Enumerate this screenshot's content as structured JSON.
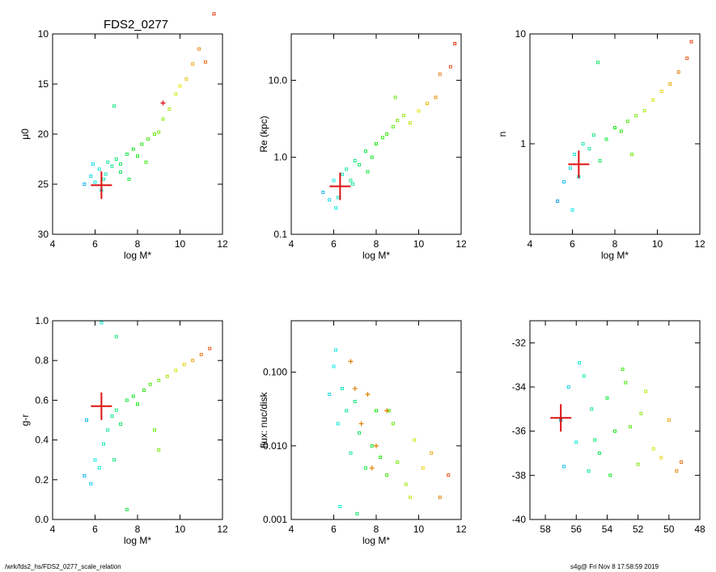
{
  "figure_title": "FDS2_0277",
  "footer": {
    "left": "/wrk/fds2_hs/FDS2_0277_scale_relation",
    "right": "s4g@  Fri Nov  8 17:58:59 2019"
  },
  "chart_data": [
    {
      "type": "scatter",
      "title": "FDS2_0277",
      "xlabel": "log M*",
      "ylabel": "μ0",
      "xlim": [
        4,
        12
      ],
      "ylim": [
        30,
        10
      ],
      "y_inverted": true,
      "xticks": [
        4,
        6,
        8,
        10,
        12
      ],
      "xtick_labels": [
        "4",
        "6",
        "8",
        "10",
        "12"
      ],
      "yticks": [
        10,
        15,
        20,
        25,
        30
      ],
      "ytick_labels": [
        "10",
        "15",
        "20",
        "25",
        "30"
      ],
      "color_by": "g-r",
      "points": [
        [
          5.5,
          25.0
        ],
        [
          5.8,
          24.2
        ],
        [
          6.0,
          24.8
        ],
        [
          6.2,
          23.5
        ],
        [
          6.3,
          25.6
        ],
        [
          6.5,
          24.0
        ],
        [
          6.6,
          22.8
        ],
        [
          6.8,
          23.2
        ],
        [
          7.0,
          22.5
        ],
        [
          7.2,
          23.8
        ],
        [
          7.5,
          22.0
        ],
        [
          7.8,
          21.5
        ],
        [
          8.0,
          22.2
        ],
        [
          8.2,
          21.0
        ],
        [
          8.5,
          20.5
        ],
        [
          8.8,
          20.0
        ],
        [
          9.0,
          19.8
        ],
        [
          9.2,
          18.5
        ],
        [
          9.5,
          17.5
        ],
        [
          9.8,
          16.0
        ],
        [
          10.0,
          15.2
        ],
        [
          10.3,
          14.5
        ],
        [
          10.6,
          13.0
        ],
        [
          10.9,
          11.5
        ],
        [
          11.2,
          12.8
        ],
        [
          11.6,
          8.0
        ],
        [
          6.9,
          17.2
        ],
        [
          7.2,
          23.0
        ],
        [
          6.4,
          24.5
        ],
        [
          5.9,
          23.0
        ],
        [
          7.6,
          24.5
        ],
        [
          8.4,
          22.8
        ]
      ],
      "highlight": {
        "x": 9.2,
        "y": 16.9,
        "label": ""
      },
      "target": {
        "x": 6.3,
        "y": 25.1
      }
    },
    {
      "type": "scatter",
      "xlabel": "log M*",
      "ylabel": "Re (kpc)",
      "yscale": "log",
      "xlim": [
        4,
        12
      ],
      "ylim": [
        0.1,
        40
      ],
      "xticks": [
        4,
        6,
        8,
        10,
        12
      ],
      "xtick_labels": [
        "4",
        "6",
        "8",
        "10",
        "12"
      ],
      "yticks": [
        0.1,
        1.0,
        10.0
      ],
      "ytick_labels": [
        "0.1",
        "1.0",
        "10.0"
      ],
      "color_by": "g-r",
      "points": [
        [
          5.5,
          0.35
        ],
        [
          5.8,
          0.28
        ],
        [
          6.0,
          0.5
        ],
        [
          6.2,
          0.3
        ],
        [
          6.4,
          0.6
        ],
        [
          6.6,
          0.7
        ],
        [
          6.8,
          0.5
        ],
        [
          7.0,
          0.9
        ],
        [
          7.2,
          0.8
        ],
        [
          7.5,
          1.2
        ],
        [
          7.8,
          1.0
        ],
        [
          8.0,
          1.5
        ],
        [
          8.3,
          1.8
        ],
        [
          8.5,
          2.0
        ],
        [
          8.8,
          2.5
        ],
        [
          9.0,
          3.0
        ],
        [
          9.3,
          3.5
        ],
        [
          9.6,
          2.8
        ],
        [
          10.0,
          4.0
        ],
        [
          10.4,
          5.0
        ],
        [
          10.8,
          6.0
        ],
        [
          11.0,
          12.0
        ],
        [
          11.5,
          15.0
        ],
        [
          11.7,
          30.0
        ],
        [
          6.1,
          0.22
        ],
        [
          6.9,
          0.45
        ],
        [
          7.6,
          0.65
        ],
        [
          8.9,
          6.0
        ]
      ],
      "target": {
        "x": 6.3,
        "y": 0.42
      }
    },
    {
      "type": "scatter",
      "xlabel": "log M*",
      "ylabel": "n",
      "yscale": "log",
      "xlim": [
        4,
        12
      ],
      "ylim": [
        0.15,
        10
      ],
      "xticks": [
        4,
        6,
        8,
        10,
        12
      ],
      "xtick_labels": [
        "4",
        "6",
        "8",
        "10",
        "12"
      ],
      "yticks": [
        1,
        10
      ],
      "ytick_labels": [
        "1",
        "10"
      ],
      "color_by": "g-r",
      "points": [
        [
          5.3,
          0.3
        ],
        [
          5.6,
          0.45
        ],
        [
          5.9,
          0.6
        ],
        [
          6.1,
          0.8
        ],
        [
          6.3,
          0.5
        ],
        [
          6.5,
          1.0
        ],
        [
          6.8,
          0.9
        ],
        [
          7.0,
          1.2
        ],
        [
          7.3,
          0.7
        ],
        [
          7.6,
          1.1
        ],
        [
          8.0,
          1.4
        ],
        [
          8.3,
          1.3
        ],
        [
          8.6,
          1.6
        ],
        [
          9.0,
          1.8
        ],
        [
          9.4,
          2.0
        ],
        [
          9.8,
          2.5
        ],
        [
          10.2,
          3.0
        ],
        [
          10.6,
          3.5
        ],
        [
          11.0,
          4.5
        ],
        [
          11.4,
          6.0
        ],
        [
          11.6,
          8.5
        ],
        [
          7.2,
          5.5
        ],
        [
          6.0,
          0.25
        ],
        [
          8.8,
          0.8
        ]
      ],
      "target": {
        "x": 6.3,
        "y": 0.65
      }
    },
    {
      "type": "scatter",
      "xlabel": "log M*",
      "ylabel": "g-r",
      "xlim": [
        4,
        12
      ],
      "ylim": [
        0.0,
        1.0
      ],
      "xticks": [
        4,
        6,
        8,
        10,
        12
      ],
      "xtick_labels": [
        "4",
        "6",
        "8",
        "10",
        "12"
      ],
      "yticks": [
        0.0,
        0.2,
        0.4,
        0.6,
        0.8,
        1.0
      ],
      "ytick_labels": [
        "0.0",
        "0.2",
        "0.4",
        "0.6",
        "0.8",
        "1.0"
      ],
      "color_by": "g-r",
      "points": [
        [
          5.5,
          0.22
        ],
        [
          5.8,
          0.18
        ],
        [
          6.0,
          0.3
        ],
        [
          6.2,
          0.26
        ],
        [
          6.4,
          0.38
        ],
        [
          6.6,
          0.45
        ],
        [
          6.8,
          0.52
        ],
        [
          7.0,
          0.55
        ],
        [
          7.2,
          0.48
        ],
        [
          7.5,
          0.6
        ],
        [
          7.8,
          0.62
        ],
        [
          8.0,
          0.58
        ],
        [
          8.3,
          0.65
        ],
        [
          8.6,
          0.68
        ],
        [
          9.0,
          0.7
        ],
        [
          9.4,
          0.72
        ],
        [
          9.8,
          0.75
        ],
        [
          10.2,
          0.78
        ],
        [
          10.6,
          0.8
        ],
        [
          11.0,
          0.83
        ],
        [
          11.4,
          0.86
        ],
        [
          6.3,
          0.99
        ],
        [
          7.0,
          0.92
        ],
        [
          7.5,
          0.05
        ],
        [
          9.0,
          0.35
        ],
        [
          5.6,
          0.5
        ],
        [
          6.9,
          0.3
        ],
        [
          8.8,
          0.45
        ]
      ],
      "target": {
        "x": 6.3,
        "y": 0.57
      }
    },
    {
      "type": "scatter",
      "xlabel": "log M*",
      "ylabel": "flux: nuc/disk",
      "yscale": "log",
      "xlim": [
        4,
        12
      ],
      "ylim": [
        0.001,
        0.5
      ],
      "xticks": [
        4,
        6,
        8,
        10,
        12
      ],
      "xtick_labels": [
        "4",
        "6",
        "8",
        "10",
        "12"
      ],
      "yticks": [
        0.001,
        0.01,
        0.1
      ],
      "ytick_labels": [
        "0.001",
        "0.010",
        "0.100"
      ],
      "color_by": "g-r",
      "points": [
        [
          5.8,
          0.05
        ],
        [
          6.0,
          0.12
        ],
        [
          6.2,
          0.02
        ],
        [
          6.4,
          0.06
        ],
        [
          6.6,
          0.03
        ],
        [
          6.8,
          0.008
        ],
        [
          7.0,
          0.04
        ],
        [
          7.2,
          0.015
        ],
        [
          7.5,
          0.005
        ],
        [
          7.8,
          0.01
        ],
        [
          8.0,
          0.03
        ],
        [
          8.2,
          0.007
        ],
        [
          8.5,
          0.004
        ],
        [
          8.8,
          0.02
        ],
        [
          9.0,
          0.006
        ],
        [
          9.4,
          0.003
        ],
        [
          9.8,
          0.012
        ],
        [
          10.2,
          0.005
        ],
        [
          10.6,
          0.008
        ],
        [
          11.0,
          0.002
        ],
        [
          11.4,
          0.004
        ],
        [
          6.1,
          0.2
        ],
        [
          6.3,
          0.0015
        ],
        [
          7.1,
          0.0012
        ],
        [
          8.6,
          0.03
        ],
        [
          9.6,
          0.002
        ]
      ],
      "highlight_stars": [
        [
          6.8,
          0.14
        ],
        [
          7.0,
          0.06
        ],
        [
          7.6,
          0.05
        ],
        [
          8.5,
          0.03
        ],
        [
          7.3,
          0.02
        ],
        [
          8.0,
          0.01
        ],
        [
          7.8,
          0.005
        ]
      ]
    },
    {
      "type": "scatter",
      "xlabel": "",
      "ylabel": "",
      "xlim": [
        59,
        48
      ],
      "ylim": [
        -40,
        -31
      ],
      "x_inverted": true,
      "xticks": [
        58,
        56,
        54,
        52,
        50,
        48
      ],
      "xtick_labels": [
        "58",
        "56",
        "54",
        "52",
        "50",
        "48"
      ],
      "yticks": [
        -40,
        -38,
        -36,
        -34,
        -32
      ],
      "ytick_labels": [
        "-40",
        "-38",
        "-36",
        "-34",
        "-32"
      ],
      "color_by": "g-r",
      "points": [
        [
          57.0,
          -35.5
        ],
        [
          56.5,
          -34.0
        ],
        [
          56.0,
          -36.5
        ],
        [
          55.5,
          -33.5
        ],
        [
          55.0,
          -35.0
        ],
        [
          54.5,
          -37.0
        ],
        [
          54.0,
          -34.5
        ],
        [
          53.5,
          -36.0
        ],
        [
          53.0,
          -33.2
        ],
        [
          52.5,
          -35.8
        ],
        [
          52.0,
          -37.5
        ],
        [
          51.5,
          -34.2
        ],
        [
          51.0,
          -36.8
        ],
        [
          50.5,
          -37.2
        ],
        [
          50.0,
          -35.5
        ],
        [
          49.5,
          -37.8
        ],
        [
          49.2,
          -37.4
        ],
        [
          56.8,
          -37.6
        ],
        [
          55.8,
          -32.9
        ],
        [
          53.8,
          -38.0
        ],
        [
          52.8,
          -33.8
        ],
        [
          54.8,
          -36.4
        ],
        [
          55.2,
          -37.8
        ],
        [
          51.8,
          -35.2
        ]
      ],
      "target": {
        "x": 57.0,
        "y": -35.4
      }
    }
  ]
}
